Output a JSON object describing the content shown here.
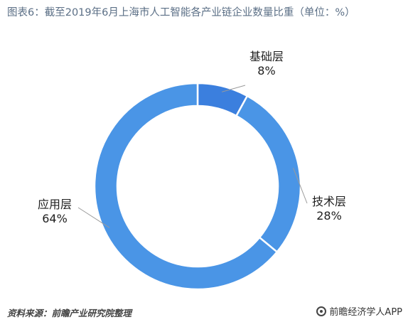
{
  "title": "图表6：截至2019年6月上海市人工智能各产业链企业数量比重（单位：%）",
  "chart_data": {
    "type": "pie",
    "donut": true,
    "categories": [
      "基础层",
      "技术层",
      "应用层"
    ],
    "values": [
      8,
      28,
      64
    ],
    "value_labels": [
      "8%",
      "28%",
      "64%"
    ],
    "colors": [
      "#3b7fde",
      "#4a95e6",
      "#4a95e6"
    ],
    "legend": "none"
  },
  "source": "资料来源：前瞻产业研究院整理",
  "brand": "前瞻经济学人APP"
}
